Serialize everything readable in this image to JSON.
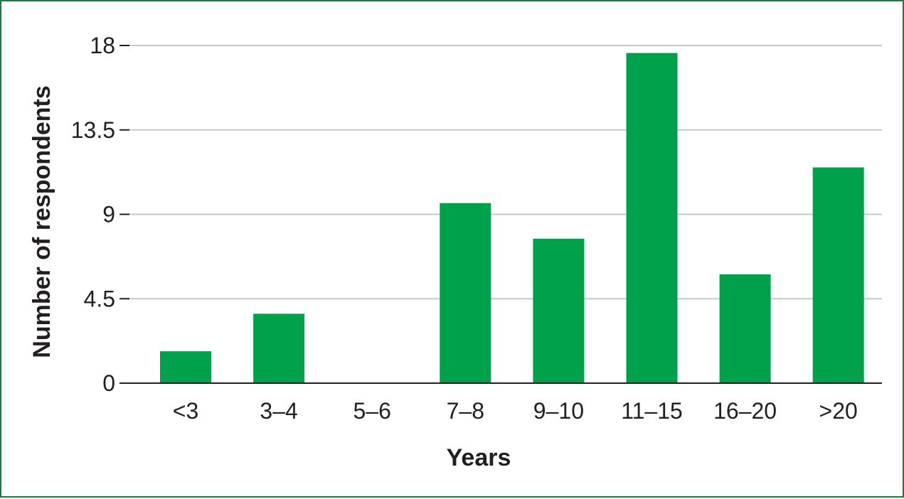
{
  "chart_data": {
    "type": "bar",
    "title": "",
    "xlabel": "Years",
    "ylabel": "Number of respondents",
    "categories": [
      "<3",
      "3–4",
      "5–6",
      "7–8",
      "9–10",
      "11–15",
      "16–20",
      ">20"
    ],
    "values": [
      1.7,
      3.7,
      0,
      9.6,
      7.7,
      17.6,
      5.8,
      11.5
    ],
    "ylim": [
      0,
      18
    ],
    "yticks": [
      "0",
      "4.5",
      "9",
      "13.5",
      "18"
    ],
    "ytick_values": [
      0,
      4.5,
      9,
      13.5,
      18
    ],
    "grid": true,
    "legend": "none",
    "bar_color": "#00a14b",
    "frame_color": "#1e7a3c"
  }
}
